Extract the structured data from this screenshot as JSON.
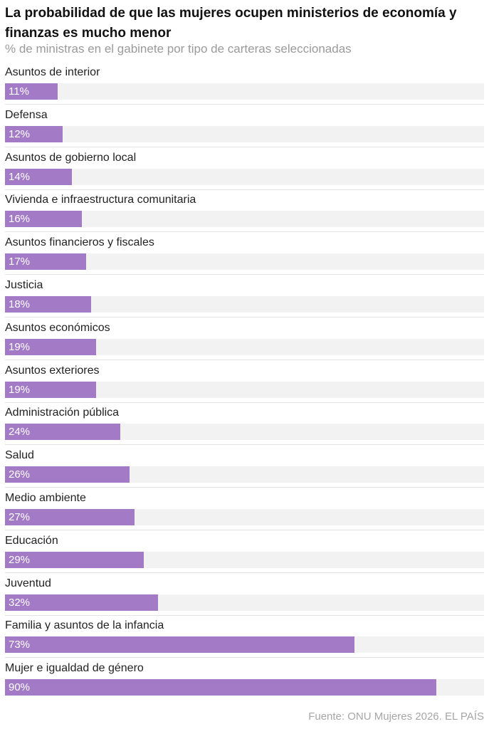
{
  "chart_data": {
    "type": "bar",
    "orientation": "horizontal",
    "title": "La probabilidad de que las mujeres ocupen ministerios de economía y finanzas es mucho menor",
    "subtitle": "% de ministras en el gabinete por tipo de carteras seleccionadas",
    "xlim": [
      0,
      100
    ],
    "value_suffix": "%",
    "bar_color": "#a27ac6",
    "track_color": "#f2f2f2",
    "grid": false,
    "categories": [
      "Asuntos de interior",
      "Defensa",
      "Asuntos de gobierno local",
      "Vivienda e infraestructura comunitaria",
      "Asuntos financieros y fiscales",
      "Justicia",
      "Asuntos económicos",
      "Asuntos exteriores",
      "Administración pública",
      "Salud",
      "Medio ambiente",
      "Educación",
      "Juventud",
      "Familia y asuntos de la infancia",
      "Mujer e igualdad de género"
    ],
    "values": [
      11,
      12,
      14,
      16,
      17,
      18,
      19,
      19,
      24,
      26,
      27,
      29,
      32,
      73,
      90
    ],
    "value_labels": [
      "11%",
      "12%",
      "14%",
      "16%",
      "17%",
      "18%",
      "19%",
      "19%",
      "24%",
      "26%",
      "27%",
      "29%",
      "32%",
      "73%",
      "90%"
    ]
  },
  "source": "Fuente: ONU Mujeres 2026. EL PAÍS"
}
